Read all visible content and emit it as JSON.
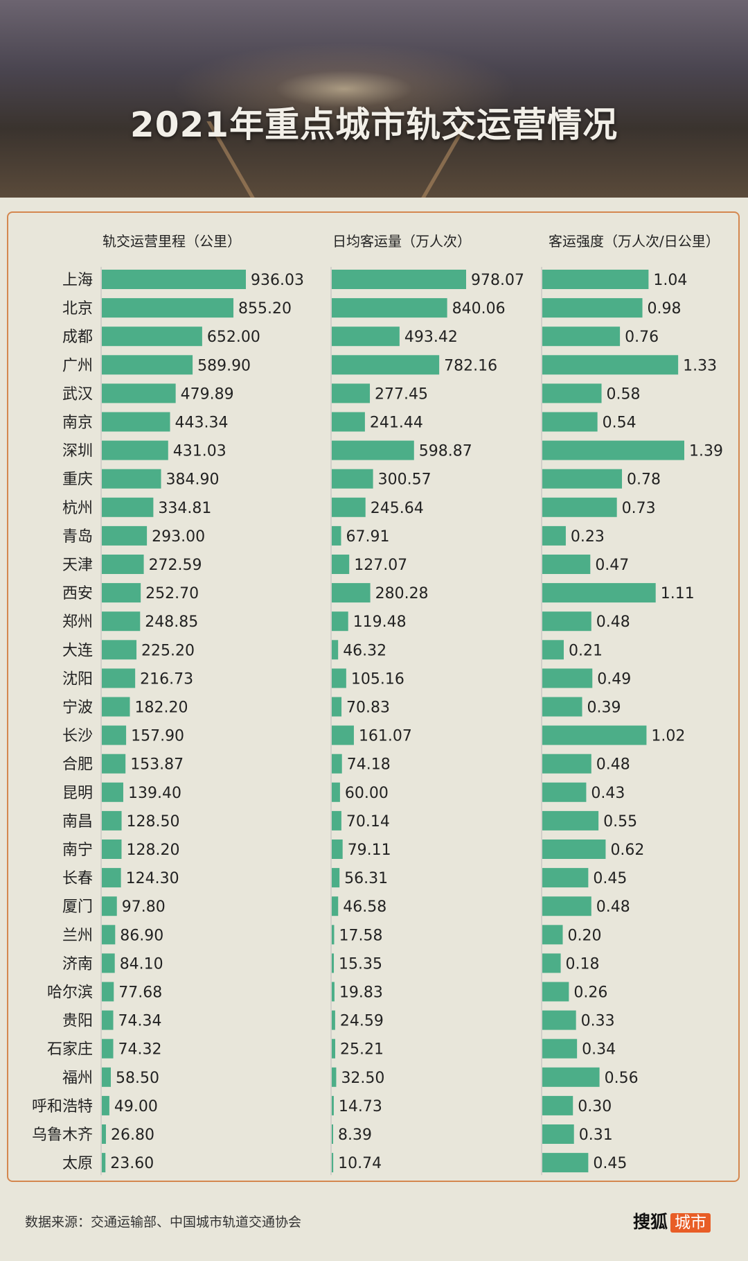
{
  "title": "2021年重点城市轨交运营情况",
  "footer": {
    "source": "数据来源：交通运输部、中国城市轨道交通协会",
    "logo_text": "搜狐",
    "logo_badge": "城市"
  },
  "colors": {
    "bar": "#4cae88",
    "border": "#d4874f",
    "background": "#e8e6da"
  },
  "chart_data": {
    "type": "bar",
    "orientation": "horizontal",
    "categories": [
      "上海",
      "北京",
      "成都",
      "广州",
      "武汉",
      "南京",
      "深圳",
      "重庆",
      "杭州",
      "青岛",
      "天津",
      "西安",
      "郑州",
      "大连",
      "沈阳",
      "宁波",
      "长沙",
      "合肥",
      "昆明",
      "南昌",
      "南宁",
      "长春",
      "厦门",
      "兰州",
      "济南",
      "哈尔滨",
      "贵阳",
      "石家庄",
      "福州",
      "呼和浩特",
      "乌鲁木齐",
      "太原"
    ],
    "series": [
      {
        "name": "轨交运营里程（公里）",
        "max": 936.03,
        "values": [
          "936.03",
          "855.20",
          "652.00",
          "589.90",
          "479.89",
          "443.34",
          "431.03",
          "384.90",
          "334.81",
          "293.00",
          "272.59",
          "252.70",
          "248.85",
          "225.20",
          "216.73",
          "182.20",
          "157.90",
          "153.87",
          "139.40",
          "128.50",
          "128.20",
          "124.30",
          "97.80",
          "86.90",
          "84.10",
          "77.68",
          "74.34",
          "74.32",
          "58.50",
          "49.00",
          "26.80",
          "23.60"
        ]
      },
      {
        "name": "日均客运量（万人次）",
        "max": 978.07,
        "values": [
          "978.07",
          "840.06",
          "493.42",
          "782.16",
          "277.45",
          "241.44",
          "598.87",
          "300.57",
          "245.64",
          "67.91",
          "127.07",
          "280.28",
          "119.48",
          "46.32",
          "105.16",
          "70.83",
          "161.07",
          "74.18",
          "60.00",
          "70.14",
          "79.11",
          "56.31",
          "46.58",
          "17.58",
          "15.35",
          "19.83",
          "24.59",
          "25.21",
          "32.50",
          "14.73",
          "8.39",
          "10.74"
        ]
      },
      {
        "name": "客运强度（万人次/日公里）",
        "max": 1.39,
        "values": [
          "1.04",
          "0.98",
          "0.76",
          "1.33",
          "0.58",
          "0.54",
          "1.39",
          "0.78",
          "0.73",
          "0.23",
          "0.47",
          "1.11",
          "0.48",
          "0.21",
          "0.49",
          "0.39",
          "1.02",
          "0.48",
          "0.43",
          "0.55",
          "0.62",
          "0.45",
          "0.48",
          "0.20",
          "0.18",
          "0.26",
          "0.33",
          "0.34",
          "0.56",
          "0.30",
          "0.31",
          "0.45"
        ]
      }
    ]
  }
}
